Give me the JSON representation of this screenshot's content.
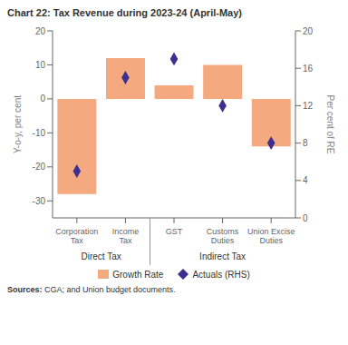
{
  "chart_data": {
    "type": "bar",
    "title": "Chart 22: Tax Revenue during 2023-24 (April-May)",
    "categories": [
      "Corporation\nTax",
      "Income\nTax",
      "GST",
      "Customs\nDuties",
      "Union Excise\nDuties"
    ],
    "series": [
      {
        "name": "Growth Rate",
        "type": "bar",
        "color": "#F5A97F",
        "values": [
          -28,
          12,
          4,
          10,
          -14
        ]
      },
      {
        "name": "Actuals (RHS)",
        "type": "scatter",
        "axis": "y2",
        "color": "#3B2F8F",
        "marker": "diamond",
        "values": [
          5,
          15,
          17,
          12,
          8
        ]
      }
    ],
    "ylabel": "Y-o-y, per cent",
    "y2label": "Per cent of RE",
    "ylim": [
      -35,
      20
    ],
    "yticks": [
      -30,
      -20,
      -10,
      0,
      10,
      20
    ],
    "y2lim": [
      0,
      20
    ],
    "y2ticks": [
      0,
      4,
      8,
      12,
      16,
      20
    ],
    "groups": [
      {
        "name": "Direct Tax",
        "categories": [
          "Corporation\nTax",
          "Income\nTax"
        ]
      },
      {
        "name": "Indirect Tax",
        "categories": [
          "GST",
          "Customs\nDuties",
          "Union Excise\nDuties"
        ]
      }
    ],
    "source": "Sources: CGA; and Union budget documents.",
    "grid": false,
    "legend": "bottom"
  }
}
